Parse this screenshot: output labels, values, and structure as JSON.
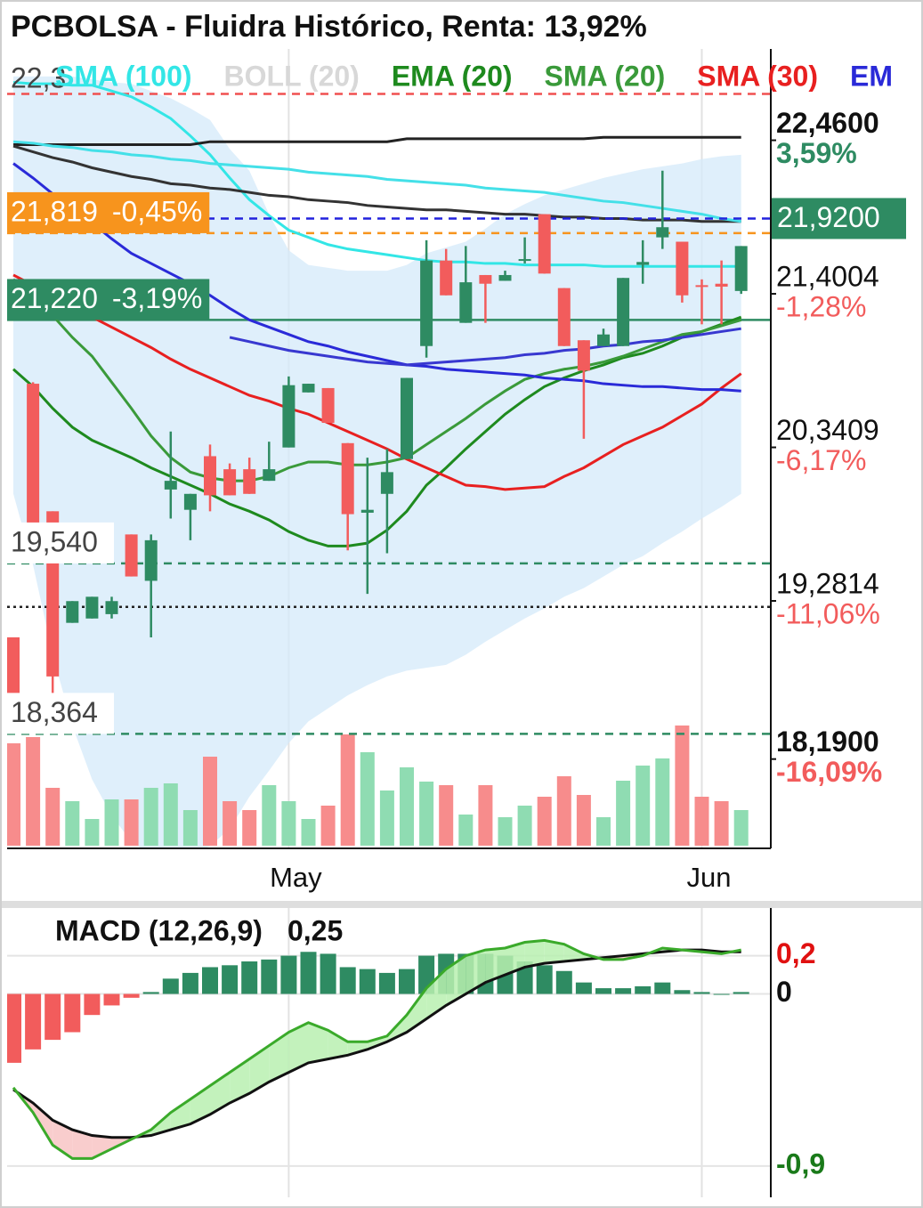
{
  "chart_data": [
    {
      "type": "candlestick",
      "title": "PCBOLSA - Fluidra Histórico, Renta: 13,92%",
      "categories": [
        null,
        null,
        null,
        null,
        null,
        null,
        null,
        null,
        null,
        null,
        null,
        null,
        null,
        null,
        "May",
        null,
        null,
        null,
        null,
        null,
        null,
        null,
        null,
        null,
        null,
        null,
        null,
        null,
        null,
        null,
        null,
        null,
        null,
        null,
        null,
        "Jun",
        null,
        null
      ],
      "open": [
        19.03,
        20.78,
        19.9,
        19.13,
        19.16,
        19.19,
        19.74,
        19.42,
        20.05,
        19.91,
        20.28,
        20.19,
        20.19,
        20.11,
        20.34,
        20.72,
        20.75,
        20.37,
        19.89,
        20.02,
        20.26,
        21.04,
        21.63,
        21.2,
        21.53,
        21.49,
        21.63,
        21.95,
        21.44,
        21.08,
        21.04,
        21.04,
        21.6,
        21.79,
        21.76,
        21.46,
        21.47,
        21.42
      ],
      "high": [
        19.03,
        20.79,
        19.9,
        19.28,
        19.31,
        19.31,
        19.74,
        19.74,
        20.45,
        20.02,
        20.36,
        20.23,
        20.27,
        20.38,
        20.83,
        20.78,
        20.75,
        20.37,
        20.27,
        20.33,
        20.82,
        21.77,
        21.71,
        21.73,
        21.53,
        21.56,
        21.79,
        21.95,
        21.44,
        21.08,
        21.16,
        21.51,
        21.77,
        22.25,
        21.76,
        21.5,
        21.63,
        21.73
      ],
      "low": [
        18.45,
        19.62,
        18.63,
        19.13,
        19.16,
        19.16,
        19.45,
        19.03,
        19.85,
        19.7,
        19.9,
        20.01,
        20.02,
        20.11,
        20.34,
        20.72,
        20.51,
        19.63,
        19.33,
        19.61,
        20.26,
        20.96,
        21.39,
        21.2,
        21.2,
        21.49,
        21.61,
        21.54,
        21.04,
        20.4,
        21.04,
        21.04,
        21.47,
        21.71,
        21.34,
        21.19,
        21.19,
        21.4
      ],
      "close": [
        18.45,
        19.65,
        18.76,
        19.28,
        19.31,
        19.28,
        19.45,
        19.7,
        20.11,
        20.02,
        20.01,
        20.01,
        20.02,
        20.19,
        20.77,
        20.78,
        20.51,
        19.88,
        19.91,
        20.17,
        20.82,
        21.63,
        21.39,
        21.48,
        21.47,
        21.53,
        21.64,
        21.54,
        21.04,
        20.87,
        21.12,
        21.51,
        21.62,
        21.86,
        21.39,
        21.45,
        21.45,
        21.73
      ],
      "volume": [
        115,
        122,
        65,
        50,
        30,
        52,
        52,
        65,
        70,
        40,
        100,
        50,
        40,
        68,
        50,
        30,
        45,
        125,
        105,
        62,
        88,
        72,
        68,
        35,
        68,
        32,
        45,
        55,
        78,
        57,
        32,
        73,
        90,
        98,
        135,
        55,
        50,
        40
      ],
      "colors": {
        "up": "#2e8b62",
        "down": "#f25c5c",
        "volume_up": "#8fdcb2",
        "volume_down": "#f78c8c"
      },
      "ylim": [
        17.58,
        23.09
      ],
      "yticks": [
        {
          "value": 22.46,
          "label": "22,4600"
        },
        {
          "value": 21.4004,
          "label": "21,4004"
        },
        {
          "value": 20.3409,
          "label": "20,3409"
        },
        {
          "value": 19.2814,
          "label": "19,2814"
        },
        {
          "value": 18.19,
          "label": "18,1900"
        }
      ],
      "tick_changes": [
        "3,59%",
        "-1,28%",
        "-6,17%",
        "-11,06%",
        "-16,09%"
      ],
      "tick_change_colors": [
        "#2e8b62",
        "#f25c5c",
        "#f25c5c",
        "#f25c5c",
        "#f25c5c"
      ],
      "tick_bold": [
        true,
        false,
        false,
        false,
        true
      ],
      "price": {
        "value": 21.92,
        "label": "21,9200",
        "color": "#2e8b62",
        "line_color": "#2222dd"
      },
      "top_label": "22,3",
      "levels": [
        {
          "value": 22.78,
          "color": "#f05050",
          "style": "dashed"
        },
        {
          "value": 21.819,
          "label": "21,819",
          "change": "-0,45%",
          "color": "#f7941d",
          "style": "dashed",
          "box": "#f7941d"
        },
        {
          "value": 21.22,
          "label": "21,220",
          "change": "-3,19%",
          "color": "#2e8b62",
          "style": "solid",
          "box": "#2e8b62"
        },
        {
          "value": 19.54,
          "label": "19,540",
          "color": "#2e8b62",
          "style": "dashed",
          "box": "#ffffff"
        },
        {
          "value": 19.24,
          "color": "#222222",
          "style": "dotted"
        },
        {
          "value": 18.364,
          "label": "18,364",
          "color": "#2e8b62",
          "style": "dashed",
          "box": "#ffffff"
        }
      ],
      "grid_x": true,
      "overlays": [
        {
          "name": "SMA (100)",
          "kind": "line",
          "color": "#33e6e6",
          "values": [
            22.86,
            22.85,
            22.85,
            22.84,
            22.84,
            22.8,
            22.76,
            22.69,
            22.61,
            22.49,
            22.36,
            22.2,
            22.05,
            21.94,
            21.84,
            21.79,
            21.74,
            21.71,
            21.69,
            21.67,
            21.65,
            21.63,
            21.62,
            21.62,
            21.61,
            21.61,
            21.6,
            21.6,
            21.6,
            21.6,
            21.59,
            21.59,
            21.59,
            21.59,
            21.59,
            21.59,
            21.59,
            21.59
          ]
        },
        {
          "name": "BOLL (20)",
          "kind": "band",
          "color": "#d8d8d8",
          "fill": "#d4e9f9",
          "upper": [
            22.9,
            22.9,
            22.9,
            22.9,
            22.88,
            22.86,
            22.85,
            22.8,
            22.75,
            22.68,
            22.6,
            22.4,
            22.25,
            21.95,
            21.7,
            21.6,
            21.58,
            21.56,
            21.56,
            21.56,
            21.6,
            21.68,
            21.72,
            21.76,
            21.85,
            21.95,
            22.02,
            22.08,
            22.12,
            22.16,
            22.2,
            22.23,
            22.26,
            22.28,
            22.3,
            22.33,
            22.35,
            22.36
          ],
          "lower": [
            20.02,
            19.53,
            18.91,
            18.42,
            18.05,
            17.8,
            17.62,
            17.53,
            17.5,
            17.53,
            17.59,
            17.71,
            17.93,
            18.11,
            18.3,
            18.45,
            18.54,
            18.63,
            18.7,
            18.76,
            18.8,
            18.82,
            18.84,
            18.91,
            19.0,
            19.08,
            19.16,
            19.23,
            19.31,
            19.37,
            19.45,
            19.53,
            19.59,
            19.68,
            19.76,
            19.85,
            19.93,
            20.02
          ]
        },
        {
          "name": "EMA (20)",
          "kind": "line",
          "color": "#1e8a1e",
          "values": [
            20.88,
            20.76,
            20.61,
            20.48,
            20.39,
            20.33,
            20.27,
            20.2,
            20.14,
            20.08,
            20.02,
            19.95,
            19.9,
            19.84,
            19.76,
            19.7,
            19.66,
            19.66,
            19.68,
            19.77,
            19.9,
            20.08,
            20.2,
            20.33,
            20.45,
            20.57,
            20.67,
            20.76,
            20.82,
            20.87,
            20.91,
            20.96,
            20.99,
            21.04,
            21.1,
            21.14,
            21.19,
            21.24
          ]
        },
        {
          "name": "SMA (20)",
          "kind": "line",
          "color": "#3a9a3a",
          "values": [
            21.5,
            21.37,
            21.25,
            21.1,
            20.97,
            20.79,
            20.61,
            20.42,
            20.27,
            20.17,
            20.13,
            20.11,
            20.11,
            20.14,
            20.2,
            20.24,
            20.24,
            20.22,
            20.22,
            20.24,
            20.27,
            20.36,
            20.45,
            20.54,
            20.64,
            20.73,
            20.81,
            20.85,
            20.88,
            20.9,
            20.93,
            20.97,
            21.02,
            21.07,
            21.12,
            21.14,
            21.18,
            21.22
          ]
        },
        {
          "name": "SMA (30)",
          "kind": "line",
          "color": "#e82020",
          "values": [
            21.53,
            21.46,
            21.38,
            21.31,
            21.24,
            21.17,
            21.1,
            21.03,
            20.95,
            20.88,
            20.82,
            20.76,
            20.7,
            20.66,
            20.61,
            20.57,
            20.51,
            20.45,
            20.39,
            20.33,
            20.26,
            20.2,
            20.14,
            20.08,
            20.07,
            20.05,
            20.06,
            20.07,
            20.14,
            20.2,
            20.28,
            20.36,
            20.42,
            20.48,
            20.56,
            20.64,
            20.75,
            20.85
          ]
        },
        {
          "name": "EM",
          "kind": "line",
          "color": "#2a2ad8",
          "values": [
            22.3,
            22.2,
            22.09,
            21.99,
            21.89,
            21.78,
            21.68,
            21.61,
            21.54,
            21.47,
            21.39,
            21.3,
            21.22,
            21.17,
            21.12,
            21.07,
            21.04,
            21.0,
            20.97,
            20.94,
            20.91,
            20.9,
            20.88,
            20.87,
            20.86,
            20.85,
            20.84,
            20.82,
            20.81,
            20.8,
            20.78,
            20.77,
            20.76,
            20.76,
            20.75,
            20.74,
            20.74,
            20.73
          ]
        },
        {
          "kind": "line",
          "color": "#3838d0",
          "values": [
            null,
            null,
            null,
            null,
            null,
            null,
            null,
            null,
            null,
            null,
            null,
            21.1,
            21.07,
            21.04,
            21.01,
            20.99,
            20.97,
            20.95,
            20.93,
            20.92,
            20.91,
            20.92,
            20.93,
            20.94,
            20.95,
            20.96,
            20.98,
            20.99,
            21.01,
            21.02,
            21.04,
            21.05,
            21.07,
            21.08,
            21.1,
            21.12,
            21.14,
            21.16
          ]
        },
        {
          "kind": "line",
          "color": "#222222",
          "values": [
            22.43,
            22.43,
            22.43,
            22.43,
            22.43,
            22.43,
            22.43,
            22.43,
            22.43,
            22.43,
            22.45,
            22.45,
            22.45,
            22.45,
            22.45,
            22.45,
            22.45,
            22.45,
            22.45,
            22.45,
            22.47,
            22.47,
            22.47,
            22.47,
            22.47,
            22.47,
            22.47,
            22.47,
            22.47,
            22.47,
            22.48,
            22.48,
            22.48,
            22.48,
            22.48,
            22.48,
            22.48,
            22.48
          ]
        },
        {
          "kind": "line",
          "color": "#333333",
          "values": [
            22.42,
            22.38,
            22.34,
            22.31,
            22.27,
            22.24,
            22.21,
            22.19,
            22.16,
            22.15,
            22.13,
            22.12,
            22.1,
            22.08,
            22.07,
            22.05,
            22.04,
            22.03,
            22.01,
            22.0,
            21.99,
            21.98,
            21.98,
            21.97,
            21.96,
            21.95,
            21.95,
            21.94,
            21.93,
            21.93,
            21.92,
            21.92,
            21.91,
            21.91,
            21.91,
            21.9,
            21.9,
            21.9
          ]
        },
        {
          "kind": "line",
          "color": "#44e0e8",
          "values": [
            22.45,
            22.44,
            22.42,
            22.41,
            22.39,
            22.38,
            22.36,
            22.35,
            22.33,
            22.32,
            22.3,
            22.29,
            22.28,
            22.27,
            22.26,
            22.24,
            22.23,
            22.22,
            22.21,
            22.19,
            22.18,
            22.17,
            22.16,
            22.15,
            22.13,
            22.12,
            22.11,
            22.1,
            22.08,
            22.06,
            22.04,
            22.03,
            22.01,
            21.99,
            21.97,
            21.95,
            21.92,
            21.9
          ]
        }
      ]
    },
    {
      "type": "macd",
      "title": "MACD (12,26,9)",
      "value": 0.25,
      "value_label": "0,25",
      "histogram": [
        -0.36,
        -0.29,
        -0.24,
        -0.2,
        -0.11,
        -0.06,
        -0.02,
        0.01,
        0.08,
        0.11,
        0.14,
        0.15,
        0.17,
        0.18,
        0.2,
        0.22,
        0.21,
        0.14,
        0.13,
        0.11,
        0.13,
        0.2,
        0.21,
        0.21,
        0.21,
        0.2,
        0.17,
        0.15,
        0.12,
        0.06,
        0.03,
        0.03,
        0.04,
        0.06,
        0.02,
        0.01,
        0.0,
        0.01
      ],
      "macd": [
        -0.49,
        -0.62,
        -0.79,
        -0.86,
        -0.86,
        -0.81,
        -0.76,
        -0.71,
        -0.62,
        -0.55,
        -0.48,
        -0.41,
        -0.34,
        -0.27,
        -0.2,
        -0.15,
        -0.19,
        -0.25,
        -0.25,
        -0.22,
        -0.11,
        0.03,
        0.13,
        0.2,
        0.23,
        0.24,
        0.27,
        0.28,
        0.26,
        0.21,
        0.18,
        0.18,
        0.2,
        0.24,
        0.23,
        0.22,
        0.21,
        0.23
      ],
      "signal": [
        -0.5,
        -0.57,
        -0.66,
        -0.71,
        -0.74,
        -0.75,
        -0.75,
        -0.74,
        -0.71,
        -0.68,
        -0.63,
        -0.57,
        -0.52,
        -0.46,
        -0.41,
        -0.36,
        -0.34,
        -0.32,
        -0.29,
        -0.25,
        -0.2,
        -0.13,
        -0.06,
        0.0,
        0.06,
        0.1,
        0.14,
        0.16,
        0.17,
        0.18,
        0.19,
        0.2,
        0.21,
        0.22,
        0.23,
        0.23,
        0.22,
        0.22
      ],
      "colors": {
        "positive": "#2e8b62",
        "negative": "#f25c5c",
        "macd": "#3aaa2a",
        "signal": "#111111",
        "fill_up": "#b8f0b0",
        "fill_down": "#f8c4c4"
      },
      "ylim": [
        -1.04,
        0.44
      ],
      "yticks": [
        {
          "value": 0.2,
          "label": "0,2"
        },
        0,
        {
          "value": -0.9,
          "label": "-0,9"
        }
      ],
      "ytick_colors": [
        "#e01010",
        "#111111",
        "#1a7a1a"
      ]
    }
  ]
}
